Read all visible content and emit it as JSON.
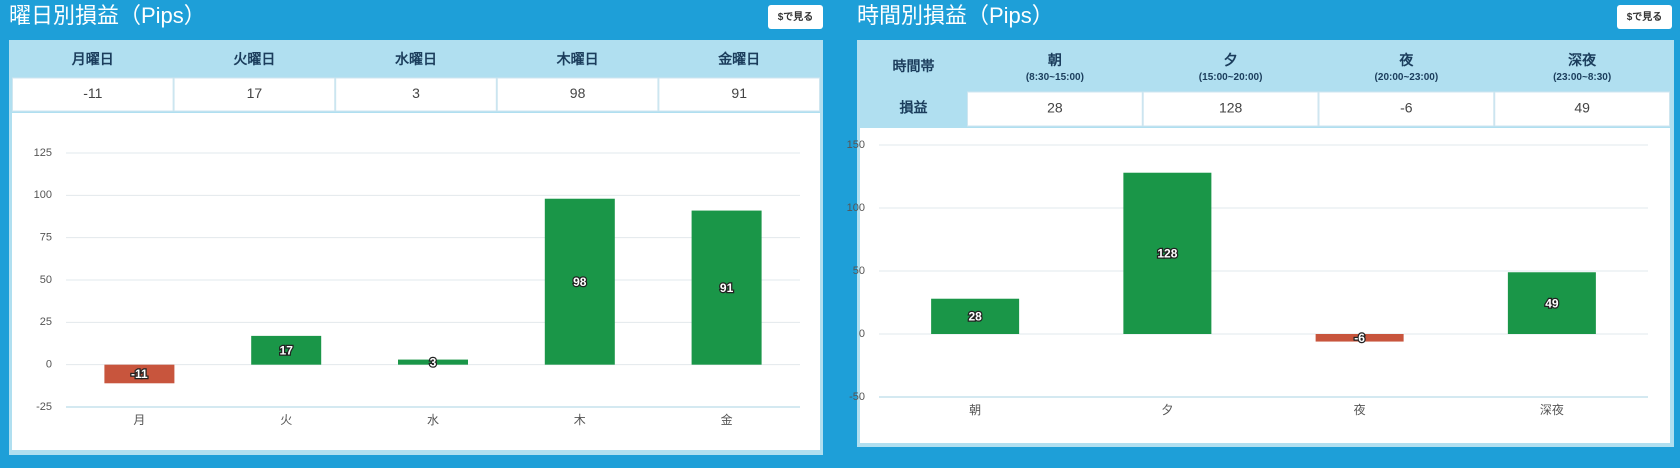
{
  "chart_data": [
    {
      "type": "bar",
      "title": "曜日別損益（Pips）",
      "button": "$で見る",
      "categories": [
        "月",
        "火",
        "水",
        "木",
        "金"
      ],
      "values": [
        -11,
        17,
        3,
        98,
        91
      ],
      "colors": [
        "#c8553d",
        "#1a9648",
        "#1a9648",
        "#1a9648",
        "#1a9648"
      ],
      "ylim": [
        -25,
        125
      ],
      "yticks": [
        -25,
        0,
        25,
        50,
        75,
        100,
        125
      ],
      "grid": true
    },
    {
      "type": "bar",
      "title": "時間別損益（Pips）",
      "button": "$で見る",
      "categories": [
        "朝",
        "夕",
        "夜",
        "深夜"
      ],
      "values": [
        28,
        128,
        -6,
        49
      ],
      "colors": [
        "#1a9648",
        "#1a9648",
        "#c8553d",
        "#1a9648"
      ],
      "ylim": [
        -50,
        150
      ],
      "yticks": [
        -50,
        0,
        50,
        100,
        150
      ],
      "grid": true
    }
  ],
  "tables": [
    {
      "header": [
        {
          "label": "月曜日"
        },
        {
          "label": "火曜日"
        },
        {
          "label": "水曜日"
        },
        {
          "label": "木曜日"
        },
        {
          "label": "金曜日"
        }
      ],
      "rows": [
        [
          -11,
          17,
          3,
          98,
          91
        ]
      ]
    },
    {
      "header": [
        {
          "label": "時間帯"
        },
        {
          "label": "朝",
          "sub": "(8:30~15:00)"
        },
        {
          "label": "夕",
          "sub": "(15:00~20:00)"
        },
        {
          "label": "夜",
          "sub": "(20:00~23:00)"
        },
        {
          "label": "深夜",
          "sub": "(23:00~8:30)"
        }
      ],
      "rows": [
        [
          "損益",
          28,
          128,
          -6,
          49
        ]
      ]
    }
  ]
}
